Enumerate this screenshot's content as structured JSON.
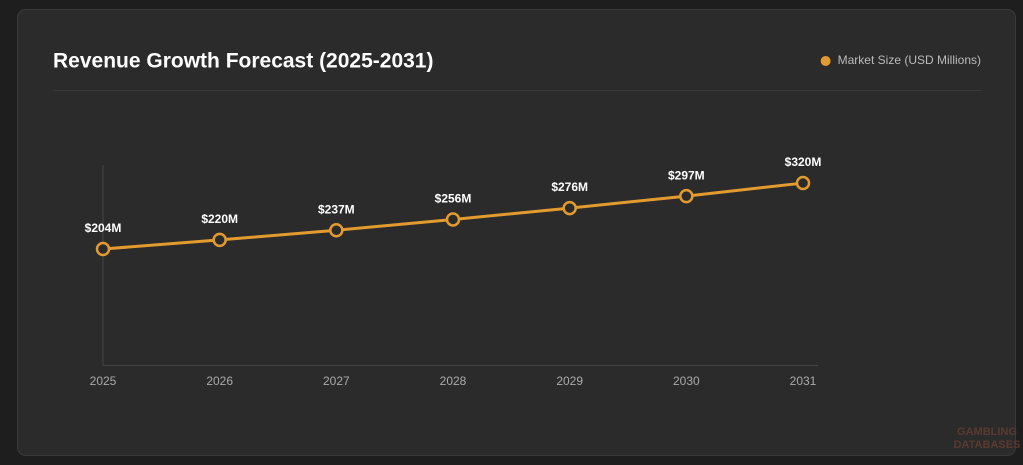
{
  "chart_data": {
    "type": "line",
    "title": "Revenue Growth Forecast (2025-2031)",
    "categories": [
      "2025",
      "2026",
      "2027",
      "2028",
      "2029",
      "2030",
      "2031"
    ],
    "series": [
      {
        "name": "Market Size (USD Millions)",
        "color": "#e39b2f",
        "values": [
          204,
          220,
          237,
          256,
          276,
          297,
          320
        ],
        "value_labels": [
          "$204M",
          "$220M",
          "$237M",
          "$256M",
          "$276M",
          "$297M",
          "$320M"
        ]
      }
    ],
    "ylim": [
      0,
      350
    ],
    "legend": "top-right"
  },
  "watermark": [
    "GAMBLING",
    "DATABASES"
  ]
}
